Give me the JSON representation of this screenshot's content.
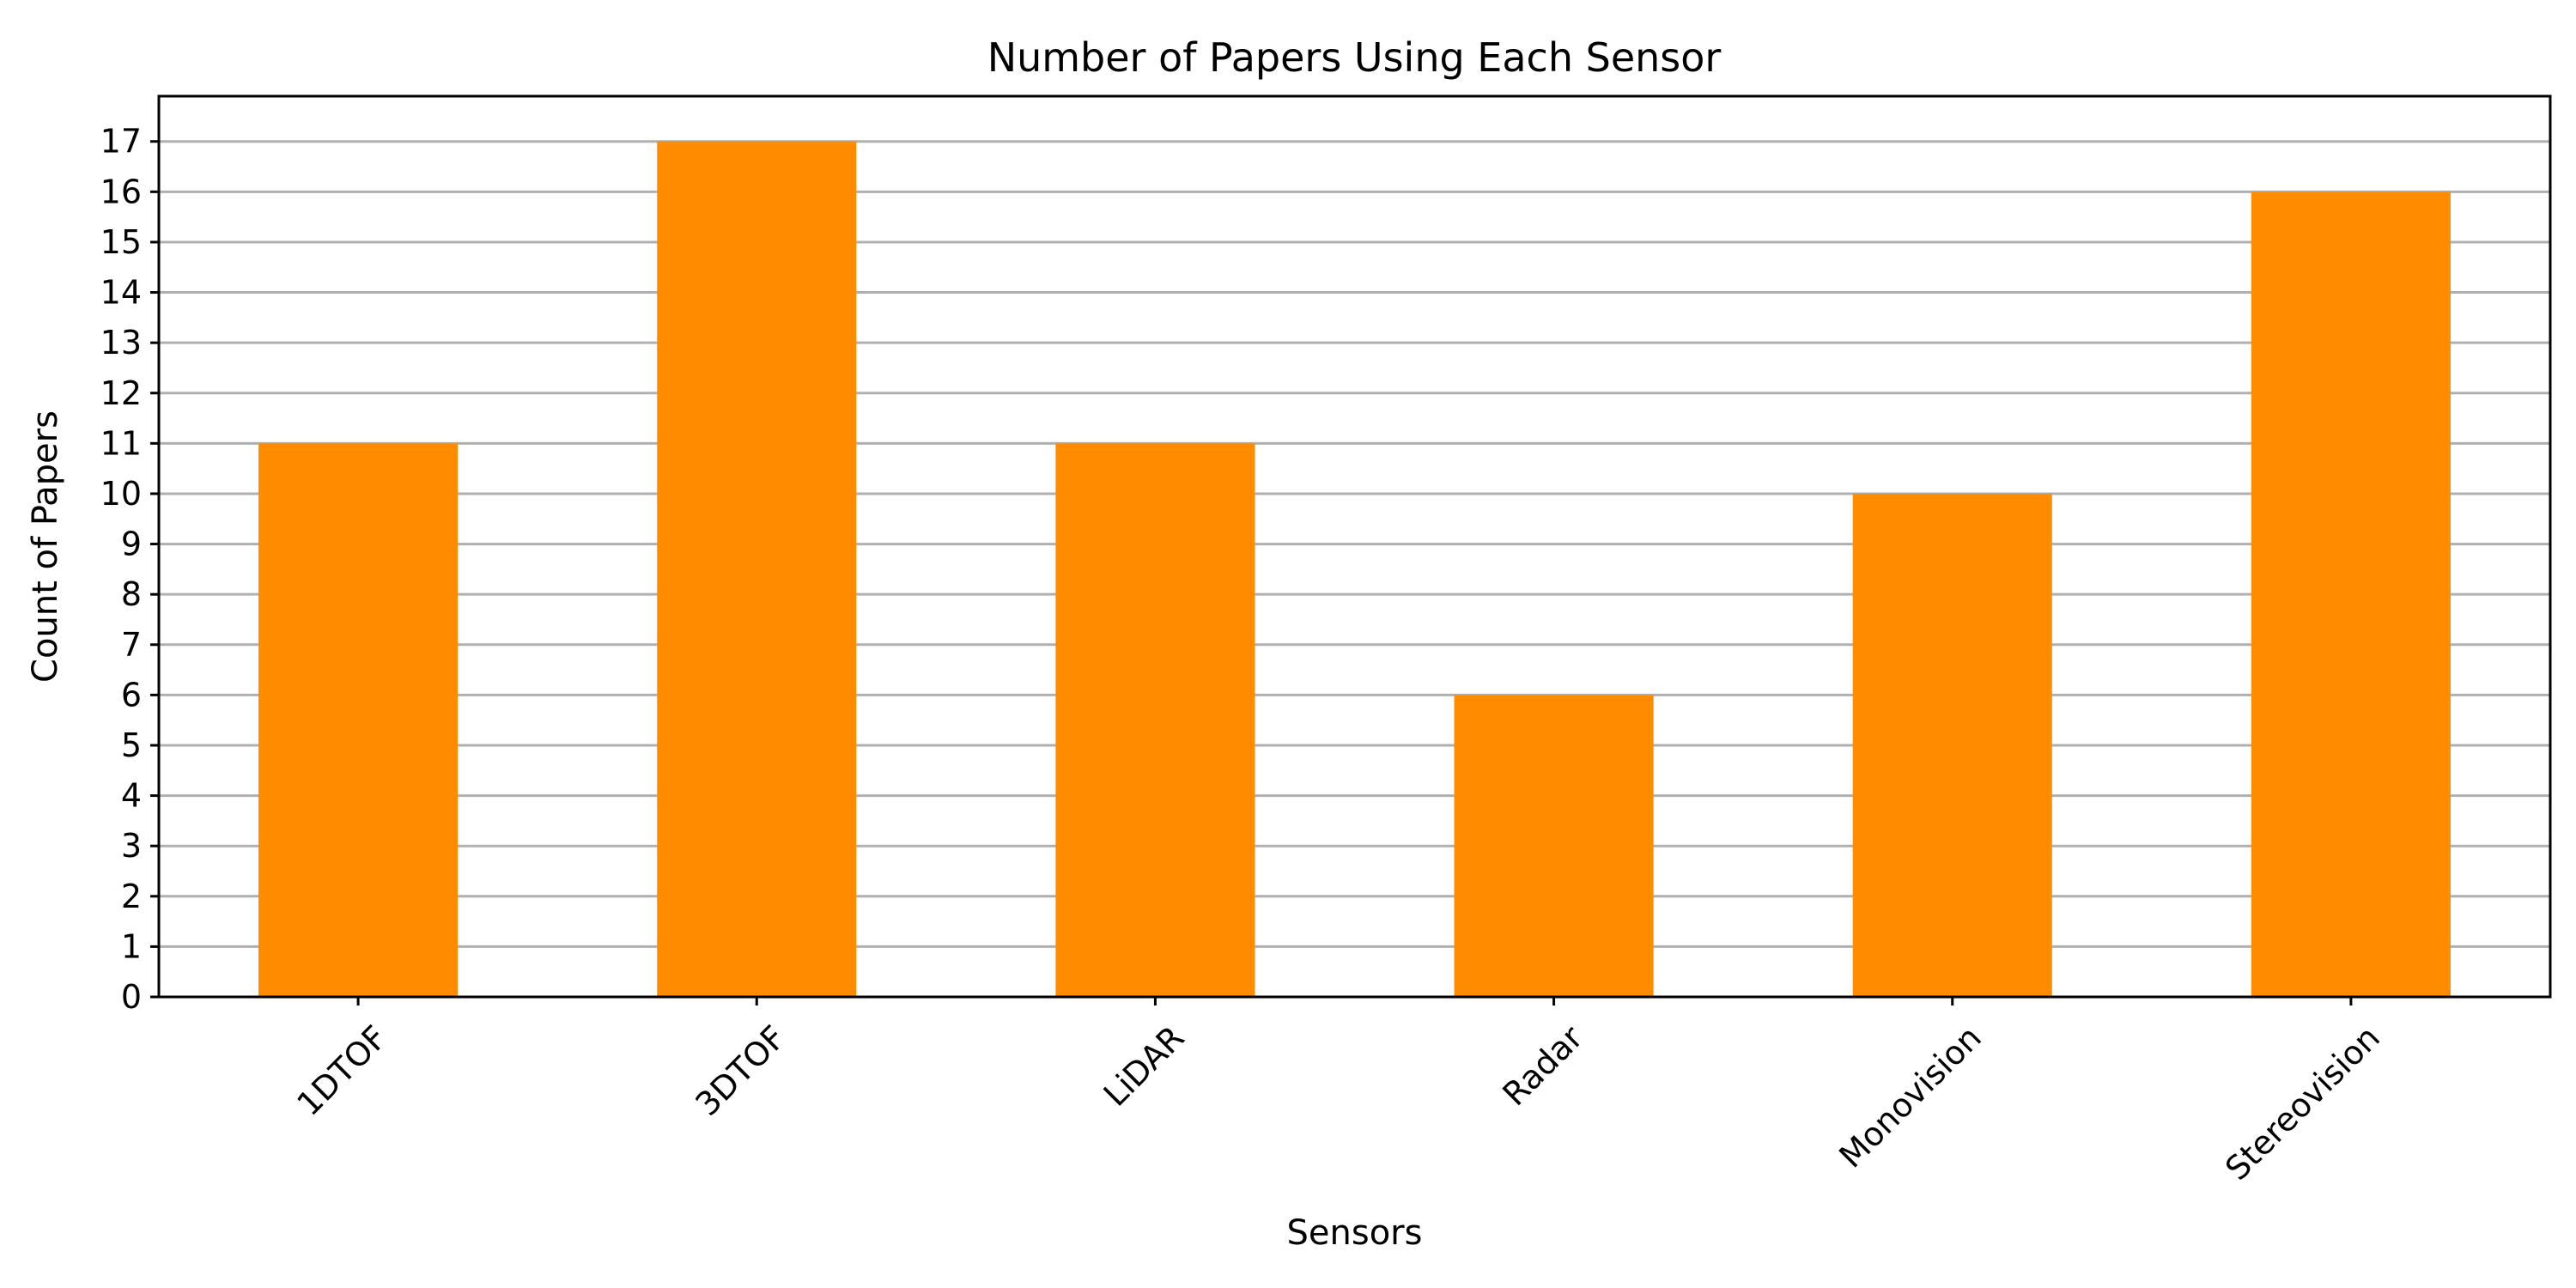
{
  "chart_data": {
    "type": "bar",
    "title": "Number of Papers Using Each Sensor",
    "xlabel": "Sensors",
    "ylabel": "Count of Papers",
    "categories": [
      "1DTOF",
      "3DTOF",
      "LiDAR",
      "Radar",
      "Monovision",
      "Stereovision"
    ],
    "values": [
      11,
      17,
      11,
      6,
      10,
      16
    ],
    "ylim": [
      0,
      17.9
    ],
    "yticks": [
      0,
      1,
      2,
      3,
      4,
      5,
      6,
      7,
      8,
      9,
      10,
      11,
      12,
      13,
      14,
      15,
      16,
      17
    ],
    "grid": "y-axis",
    "legend": "none",
    "bar_color": "#ff8c00",
    "grid_color": "#b0b0b0",
    "xtick_rotation": 45
  }
}
